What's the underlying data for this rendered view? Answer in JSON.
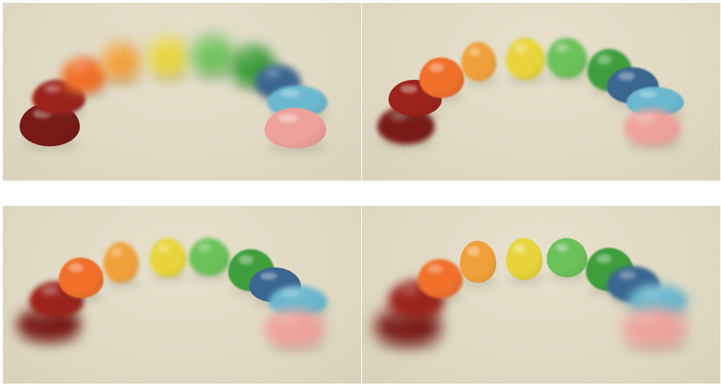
{
  "image": {
    "panels": [
      {
        "focus": "front"
      },
      {
        "focus": "middle-left"
      },
      {
        "focus": "middle"
      },
      {
        "focus": "back-middle"
      }
    ],
    "bean_colors": {
      "dark-red": "#7a1a16",
      "red": "#9c231c",
      "orange": "#f0702a",
      "light-orange": "#f0a03a",
      "yellow": "#e8d43a",
      "light-green": "#6cc25a",
      "green": "#3f9e3c",
      "blue": "#3a6690",
      "light-blue": "#6ab8cf",
      "pink": "#eea19b"
    }
  }
}
